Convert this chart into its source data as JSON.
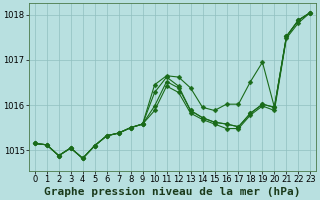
{
  "background_color": "#b8e0e0",
  "grid_color": "#90c0c0",
  "line_color": "#1a6b1a",
  "marker_color": "#1a6b1a",
  "title": "Graphe pression niveau de la mer (hPa)",
  "xlim": [
    -0.5,
    23.5
  ],
  "ylim": [
    1014.55,
    1018.25
  ],
  "yticks": [
    1015,
    1016,
    1017,
    1018
  ],
  "xticks": [
    0,
    1,
    2,
    3,
    4,
    5,
    6,
    7,
    8,
    9,
    10,
    11,
    12,
    13,
    14,
    15,
    16,
    17,
    18,
    19,
    20,
    21,
    22,
    23
  ],
  "series": [
    [
      1015.15,
      1015.12,
      1014.88,
      1015.05,
      1014.82,
      1015.1,
      1015.32,
      1015.38,
      1015.5,
      1015.58,
      1016.45,
      1016.65,
      1016.62,
      1016.38,
      1015.95,
      1015.88,
      1016.02,
      1016.02,
      1016.52,
      1016.95,
      1015.95,
      1017.52,
      1017.88,
      1018.05
    ],
    [
      1015.15,
      1015.12,
      1014.88,
      1015.05,
      1014.82,
      1015.1,
      1015.32,
      1015.38,
      1015.5,
      1015.58,
      1016.28,
      1016.62,
      1016.42,
      1015.88,
      1015.72,
      1015.62,
      1015.58,
      1015.52,
      1015.82,
      1016.02,
      1015.95,
      1017.52,
      1017.88,
      1018.05
    ],
    [
      1015.15,
      1015.12,
      1014.88,
      1015.05,
      1014.82,
      1015.1,
      1015.32,
      1015.38,
      1015.5,
      1015.58,
      1015.98,
      1016.52,
      1016.38,
      1015.88,
      1015.72,
      1015.62,
      1015.58,
      1015.52,
      1015.82,
      1016.02,
      1015.95,
      1017.52,
      1017.88,
      1018.05
    ],
    [
      1015.15,
      1015.12,
      1014.88,
      1015.05,
      1014.82,
      1015.1,
      1015.32,
      1015.38,
      1015.5,
      1015.58,
      1015.88,
      1016.42,
      1016.28,
      1015.82,
      1015.68,
      1015.58,
      1015.48,
      1015.48,
      1015.78,
      1015.98,
      1015.88,
      1017.48,
      1017.82,
      1018.05
    ]
  ],
  "title_fontsize": 8,
  "tick_fontsize": 6,
  "marker_size": 2.5,
  "line_width": 0.8,
  "fig_width": 3.2,
  "fig_height": 2.0,
  "dpi": 100
}
